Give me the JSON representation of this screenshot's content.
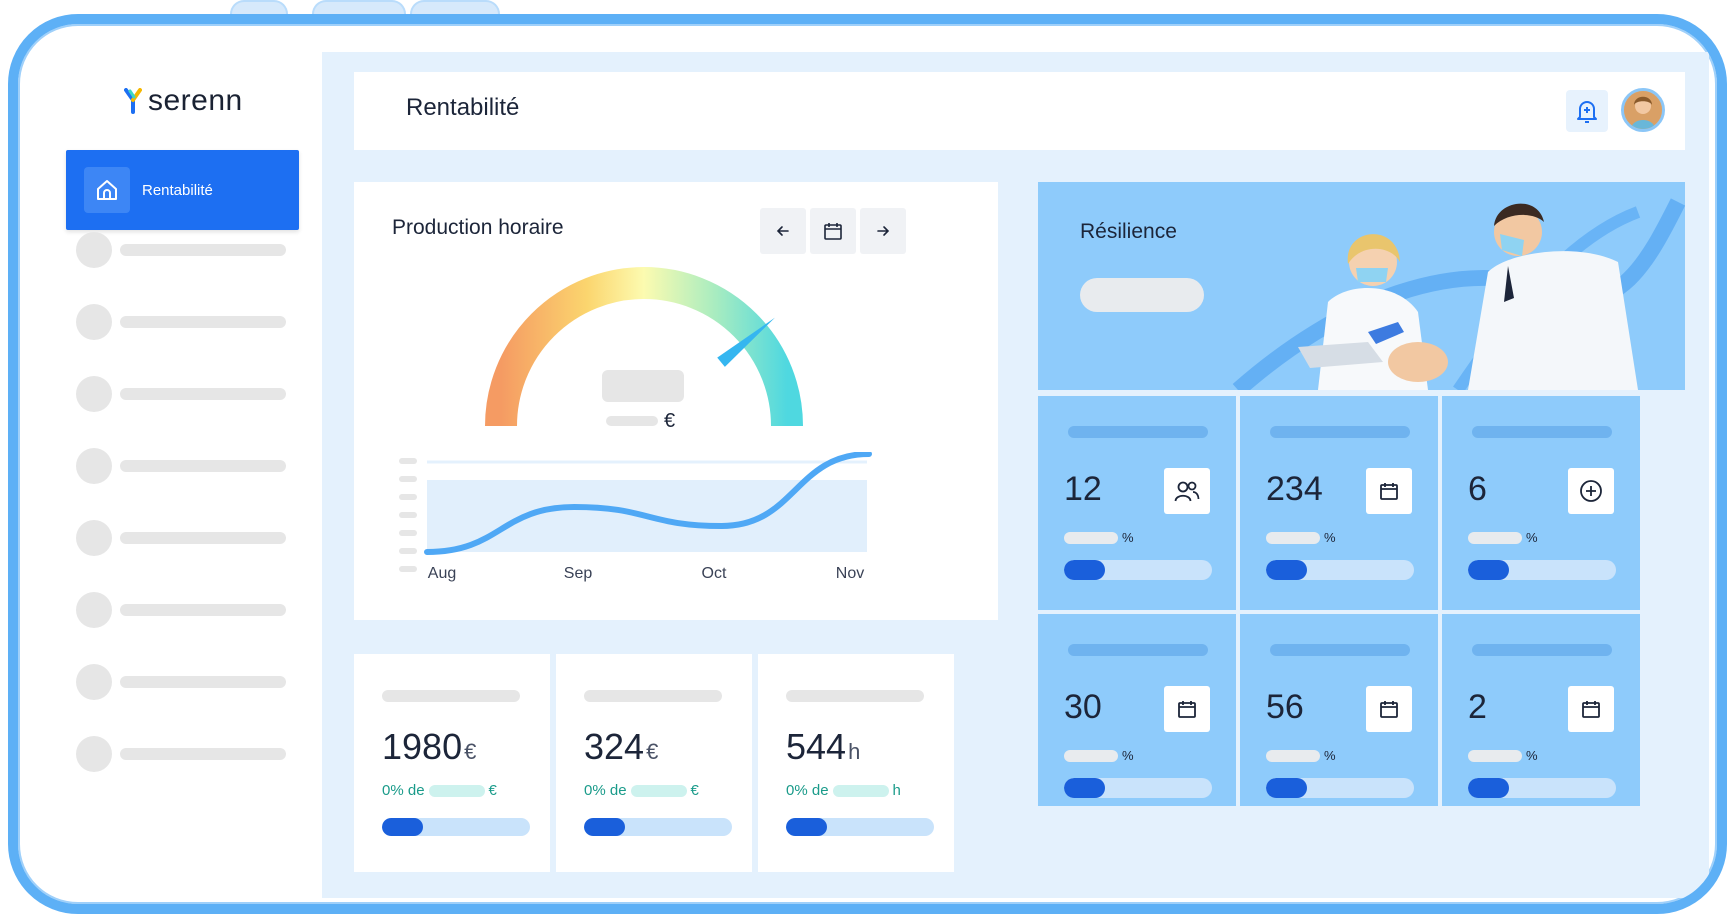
{
  "brand": {
    "name": "serenn"
  },
  "sidebar": {
    "active_label": "Rentabilité",
    "placeholder_count": 8
  },
  "header": {
    "title": "Rentabilité"
  },
  "production": {
    "title": "Production horaire",
    "currency": "€",
    "gauge_level": 0.78,
    "chart_data": {
      "type": "line",
      "categories": [
        "Aug",
        "Sep",
        "Oct",
        "Nov"
      ],
      "series": [
        {
          "values": [
            0.0,
            0.45,
            0.26,
            0.98
          ]
        }
      ]
    }
  },
  "stats": [
    {
      "value": "1980",
      "unit": "€",
      "pct_label": "0% de",
      "pct_unit": "€",
      "progress": 0.28
    },
    {
      "value": "324",
      "unit": "€",
      "pct_label": "0% de",
      "pct_unit": "€",
      "progress": 0.28
    },
    {
      "value": "544",
      "unit": "h",
      "pct_label": "0% de",
      "pct_unit": "h",
      "progress": 0.28
    }
  ],
  "banner": {
    "title": "Résilience"
  },
  "kpis": [
    {
      "value": "12",
      "icon": "users-icon",
      "pct": "%",
      "progress": 0.28
    },
    {
      "value": "234",
      "icon": "calendar-icon",
      "pct": "%",
      "progress": 0.28
    },
    {
      "value": "6",
      "icon": "plus-circle-icon",
      "pct": "%",
      "progress": 0.28
    },
    {
      "value": "30",
      "icon": "calendar-icon",
      "pct": "%",
      "progress": 0.28
    },
    {
      "value": "56",
      "icon": "calendar-icon",
      "pct": "%",
      "progress": 0.28
    },
    {
      "value": "2",
      "icon": "calendar-icon",
      "pct": "%",
      "progress": 0.28
    }
  ],
  "colors": {
    "accent": "#1d6ff2",
    "frame": "#5db0f6",
    "card_blue": "#8ecbfb",
    "progress_fill": "#1a5fdb"
  }
}
